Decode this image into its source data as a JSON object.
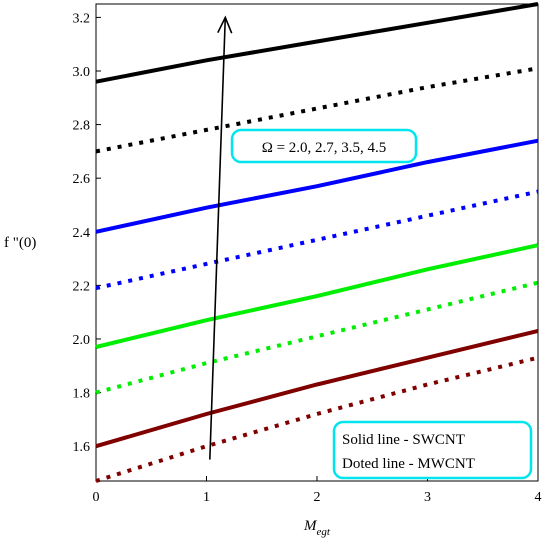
{
  "chart_data": {
    "type": "line",
    "xlabel": "M",
    "xlabel_sub": "egt",
    "ylabel": "f \"(0)",
    "xlim": [
      0,
      4
    ],
    "ylim": [
      1.47,
      3.25
    ],
    "x_ticks": [
      "0",
      "1",
      "2",
      "3",
      "4"
    ],
    "y_ticks": [
      "1.6",
      "1.8",
      "2.0",
      "2.2",
      "2.4",
      "2.6",
      "2.8",
      "3.0",
      "3.2"
    ],
    "grid": false,
    "series": [
      {
        "color": "#000000",
        "style": "solid",
        "x": [
          0,
          1,
          2,
          3,
          4
        ],
        "y": [
          2.96,
          3.04,
          3.11,
          3.18,
          3.25
        ]
      },
      {
        "color": "#000000",
        "style": "dotted",
        "x": [
          0,
          1,
          2,
          3,
          4
        ],
        "y": [
          2.7,
          2.78,
          2.86,
          2.94,
          3.01
        ]
      },
      {
        "color": "#0000ff",
        "style": "solid",
        "x": [
          0,
          1,
          2,
          3,
          4
        ],
        "y": [
          2.4,
          2.49,
          2.57,
          2.66,
          2.74
        ]
      },
      {
        "color": "#0000ff",
        "style": "dotted",
        "x": [
          0,
          1,
          2,
          3,
          4
        ],
        "y": [
          2.19,
          2.28,
          2.37,
          2.46,
          2.55
        ]
      },
      {
        "color": "#00ee00",
        "style": "solid",
        "x": [
          0,
          1,
          2,
          3,
          4
        ],
        "y": [
          1.97,
          2.07,
          2.16,
          2.26,
          2.35
        ]
      },
      {
        "color": "#00ee00",
        "style": "dotted",
        "x": [
          0,
          1,
          2,
          3,
          4
        ],
        "y": [
          1.8,
          1.91,
          2.01,
          2.11,
          2.21
        ]
      },
      {
        "color": "#800000",
        "style": "solid",
        "x": [
          0,
          1,
          2,
          3,
          4
        ],
        "y": [
          1.6,
          1.72,
          1.83,
          1.93,
          2.03
        ]
      },
      {
        "color": "#800000",
        "style": "dotted",
        "x": [
          0,
          1,
          2,
          3,
          4
        ],
        "y": [
          1.47,
          1.6,
          1.72,
          1.83,
          1.93
        ]
      }
    ],
    "annotation": {
      "text": "Ω = 2.0, 2.7, 3.5, 4.5",
      "arrow_from": [
        1.03,
        1.55
      ],
      "arrow_to": [
        1.17,
        3.2
      ],
      "box_color": "#00e5ee"
    },
    "legend": {
      "placement": "bottom-right",
      "entries": [
        "Solid line - SWCNT",
        "Doted line - MWCNT"
      ],
      "box_color": "#00e5ee"
    }
  }
}
